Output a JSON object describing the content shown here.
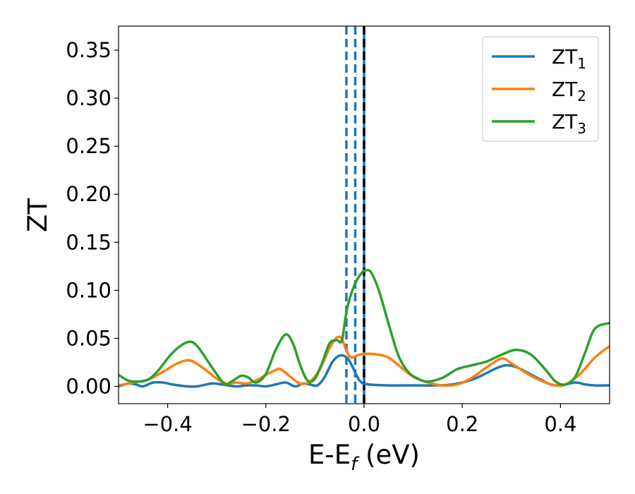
{
  "chart_data": {
    "type": "line",
    "xlabel": "E-E",
    "xlabel_sub": "f",
    "xlabel_unit": " (eV)",
    "ylabel": "ZT",
    "xlim": [
      -0.5,
      0.5
    ],
    "ylim": [
      -0.018,
      0.375
    ],
    "xticks": [
      -0.4,
      -0.2,
      0.0,
      0.2,
      0.4
    ],
    "xtick_labels": [
      "−0.4",
      "−0.2",
      "0.0",
      "0.2",
      "0.4"
    ],
    "yticks": [
      0.0,
      0.05,
      0.1,
      0.15,
      0.2,
      0.25,
      0.3,
      0.35
    ],
    "ytick_labels": [
      "0.00",
      "0.05",
      "0.10",
      "0.15",
      "0.20",
      "0.25",
      "0.30",
      "0.35"
    ],
    "grid": false,
    "legend_position": "top-right",
    "vertical_lines": [
      {
        "x": -0.036,
        "style": "dashed",
        "color": "#1f77b4"
      },
      {
        "x": -0.018,
        "style": "dashed",
        "color": "#1f77b4"
      },
      {
        "x": 0.0,
        "style": "solid",
        "color": "#1f77b4"
      },
      {
        "x": 0.0,
        "style": "dashed",
        "color": "#000000"
      }
    ],
    "series": [
      {
        "name": "ZT",
        "name_sub": "1",
        "color": "#1f77b4",
        "points": [
          [
            -0.5,
            0.0
          ],
          [
            -0.48,
            0.003
          ],
          [
            -0.465,
            0.002
          ],
          [
            -0.45,
            0.0
          ],
          [
            -0.43,
            0.004
          ],
          [
            -0.41,
            0.004
          ],
          [
            -0.39,
            0.002
          ],
          [
            -0.36,
            0.0
          ],
          [
            -0.34,
            0.0
          ],
          [
            -0.31,
            0.003
          ],
          [
            -0.29,
            0.002
          ],
          [
            -0.26,
            0.0
          ],
          [
            -0.24,
            0.001
          ],
          [
            -0.22,
            0.001
          ],
          [
            -0.2,
            0.0
          ],
          [
            -0.18,
            0.002
          ],
          [
            -0.16,
            0.004
          ],
          [
            -0.14,
            0.0
          ],
          [
            -0.125,
            0.003
          ],
          [
            -0.11,
            0.002
          ],
          [
            -0.095,
            0.001
          ],
          [
            -0.08,
            0.01
          ],
          [
            -0.065,
            0.025
          ],
          [
            -0.05,
            0.032
          ],
          [
            -0.035,
            0.03
          ],
          [
            -0.025,
            0.022
          ],
          [
            -0.015,
            0.011
          ],
          [
            -0.005,
            0.004
          ],
          [
            0.01,
            0.002
          ],
          [
            0.05,
            0.001
          ],
          [
            0.1,
            0.001
          ],
          [
            0.14,
            0.001
          ],
          [
            0.18,
            0.002
          ],
          [
            0.22,
            0.007
          ],
          [
            0.25,
            0.014
          ],
          [
            0.27,
            0.019
          ],
          [
            0.29,
            0.022
          ],
          [
            0.31,
            0.02
          ],
          [
            0.33,
            0.015
          ],
          [
            0.36,
            0.007
          ],
          [
            0.38,
            0.002
          ],
          [
            0.4,
            0.001
          ],
          [
            0.43,
            0.004
          ],
          [
            0.45,
            0.002
          ],
          [
            0.47,
            0.001
          ],
          [
            0.5,
            0.001
          ]
        ]
      },
      {
        "name": "ZT",
        "name_sub": "2",
        "color": "#ff7f0e",
        "points": [
          [
            -0.5,
            0.001
          ],
          [
            -0.47,
            0.004
          ],
          [
            -0.44,
            0.007
          ],
          [
            -0.41,
            0.015
          ],
          [
            -0.38,
            0.024
          ],
          [
            -0.355,
            0.027
          ],
          [
            -0.33,
            0.02
          ],
          [
            -0.3,
            0.008
          ],
          [
            -0.28,
            0.003
          ],
          [
            -0.26,
            0.004
          ],
          [
            -0.24,
            0.003
          ],
          [
            -0.22,
            0.006
          ],
          [
            -0.2,
            0.012
          ],
          [
            -0.18,
            0.017
          ],
          [
            -0.17,
            0.018
          ],
          [
            -0.15,
            0.01
          ],
          [
            -0.13,
            0.003
          ],
          [
            -0.11,
            0.005
          ],
          [
            -0.09,
            0.018
          ],
          [
            -0.07,
            0.04
          ],
          [
            -0.055,
            0.051
          ],
          [
            -0.045,
            0.049
          ],
          [
            -0.035,
            0.036
          ],
          [
            -0.025,
            0.03
          ],
          [
            -0.01,
            0.033
          ],
          [
            0.01,
            0.034
          ],
          [
            0.03,
            0.033
          ],
          [
            0.05,
            0.03
          ],
          [
            0.07,
            0.022
          ],
          [
            0.1,
            0.01
          ],
          [
            0.13,
            0.004
          ],
          [
            0.16,
            0.001
          ],
          [
            0.19,
            0.002
          ],
          [
            0.22,
            0.009
          ],
          [
            0.25,
            0.02
          ],
          [
            0.28,
            0.029
          ],
          [
            0.3,
            0.024
          ],
          [
            0.33,
            0.014
          ],
          [
            0.36,
            0.006
          ],
          [
            0.39,
            0.001
          ],
          [
            0.41,
            0.002
          ],
          [
            0.44,
            0.013
          ],
          [
            0.47,
            0.03
          ],
          [
            0.5,
            0.042
          ]
        ]
      },
      {
        "name": "ZT",
        "name_sub": "3",
        "color": "#2ca02c",
        "points": [
          [
            -0.5,
            0.012
          ],
          [
            -0.48,
            0.006
          ],
          [
            -0.46,
            0.005
          ],
          [
            -0.44,
            0.007
          ],
          [
            -0.42,
            0.016
          ],
          [
            -0.39,
            0.035
          ],
          [
            -0.36,
            0.046
          ],
          [
            -0.34,
            0.042
          ],
          [
            -0.31,
            0.02
          ],
          [
            -0.285,
            0.003
          ],
          [
            -0.27,
            0.005
          ],
          [
            -0.25,
            0.011
          ],
          [
            -0.235,
            0.009
          ],
          [
            -0.22,
            0.004
          ],
          [
            -0.2,
            0.013
          ],
          [
            -0.18,
            0.038
          ],
          [
            -0.16,
            0.054
          ],
          [
            -0.145,
            0.045
          ],
          [
            -0.13,
            0.022
          ],
          [
            -0.115,
            0.006
          ],
          [
            -0.1,
            0.008
          ],
          [
            -0.085,
            0.025
          ],
          [
            -0.07,
            0.045
          ],
          [
            -0.055,
            0.048
          ],
          [
            -0.045,
            0.048
          ],
          [
            -0.035,
            0.08
          ],
          [
            -0.02,
            0.105
          ],
          [
            -0.005,
            0.118
          ],
          [
            0.005,
            0.121
          ],
          [
            0.015,
            0.118
          ],
          [
            0.03,
            0.1
          ],
          [
            0.05,
            0.065
          ],
          [
            0.07,
            0.032
          ],
          [
            0.09,
            0.015
          ],
          [
            0.11,
            0.008
          ],
          [
            0.13,
            0.005
          ],
          [
            0.16,
            0.009
          ],
          [
            0.19,
            0.018
          ],
          [
            0.22,
            0.022
          ],
          [
            0.25,
            0.026
          ],
          [
            0.28,
            0.033
          ],
          [
            0.31,
            0.038
          ],
          [
            0.34,
            0.033
          ],
          [
            0.37,
            0.017
          ],
          [
            0.39,
            0.005
          ],
          [
            0.41,
            0.002
          ],
          [
            0.43,
            0.01
          ],
          [
            0.45,
            0.035
          ],
          [
            0.47,
            0.06
          ],
          [
            0.5,
            0.066
          ]
        ]
      }
    ]
  }
}
